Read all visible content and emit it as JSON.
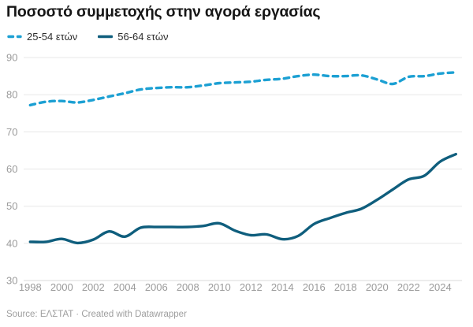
{
  "header": {
    "title": "Ποσοστό συμμετοχής στην αγορά εργασίας"
  },
  "legend": [
    {
      "label": "25-54 ετών",
      "color": "#1CA0D3",
      "style": "dashed"
    },
    {
      "label": "56-64 ετών",
      "color": "#0F5E7D",
      "style": "solid"
    }
  ],
  "footer": {
    "source": "Source: ΕΛΣΤΑΤ · Created with Datawrapper"
  },
  "chart_data": {
    "type": "line",
    "title": "Ποσοστό συμμετοχής στην αγορά εργασίας",
    "x": [
      1998,
      1999,
      2000,
      2001,
      2002,
      2003,
      2004,
      2005,
      2006,
      2007,
      2008,
      2009,
      2010,
      2011,
      2012,
      2013,
      2014,
      2015,
      2016,
      2017,
      2018,
      2019,
      2020,
      2021,
      2022,
      2023,
      2024,
      2025
    ],
    "series": [
      {
        "name": "25-54 ετών",
        "style": "dashed",
        "color": "#1CA0D3",
        "values": [
          77.2,
          78.1,
          78.3,
          77.9,
          78.6,
          79.5,
          80.4,
          81.4,
          81.8,
          82.0,
          82.0,
          82.5,
          83.1,
          83.3,
          83.5,
          84.0,
          84.3,
          85.0,
          85.4,
          85.0,
          85.0,
          85.2,
          84.1,
          82.9,
          84.8,
          85.0,
          85.7,
          86.0
        ]
      },
      {
        "name": "56-64 ετών",
        "style": "solid",
        "color": "#0F5E7D",
        "values": [
          40.4,
          40.4,
          41.2,
          40.1,
          41.0,
          43.2,
          41.8,
          44.2,
          44.4,
          44.4,
          44.4,
          44.7,
          45.4,
          43.4,
          42.2,
          42.4,
          41.1,
          42.0,
          45.2,
          46.8,
          48.2,
          49.3,
          51.7,
          54.5,
          57.2,
          58.2,
          62.0,
          64.0
        ]
      }
    ],
    "xlabel": "",
    "ylabel": "",
    "ylim": [
      30,
      90
    ],
    "yticks": [
      30,
      40,
      50,
      60,
      70,
      80,
      90
    ],
    "xticks": [
      1998,
      2000,
      2002,
      2004,
      2006,
      2008,
      2010,
      2012,
      2014,
      2016,
      2018,
      2020,
      2022,
      2024
    ],
    "grid": true,
    "legend_position": "top-left",
    "axis_color": "#9b9b9b",
    "grid_color": "#e7e7e7",
    "baseline_color": "#d9d9d9"
  }
}
